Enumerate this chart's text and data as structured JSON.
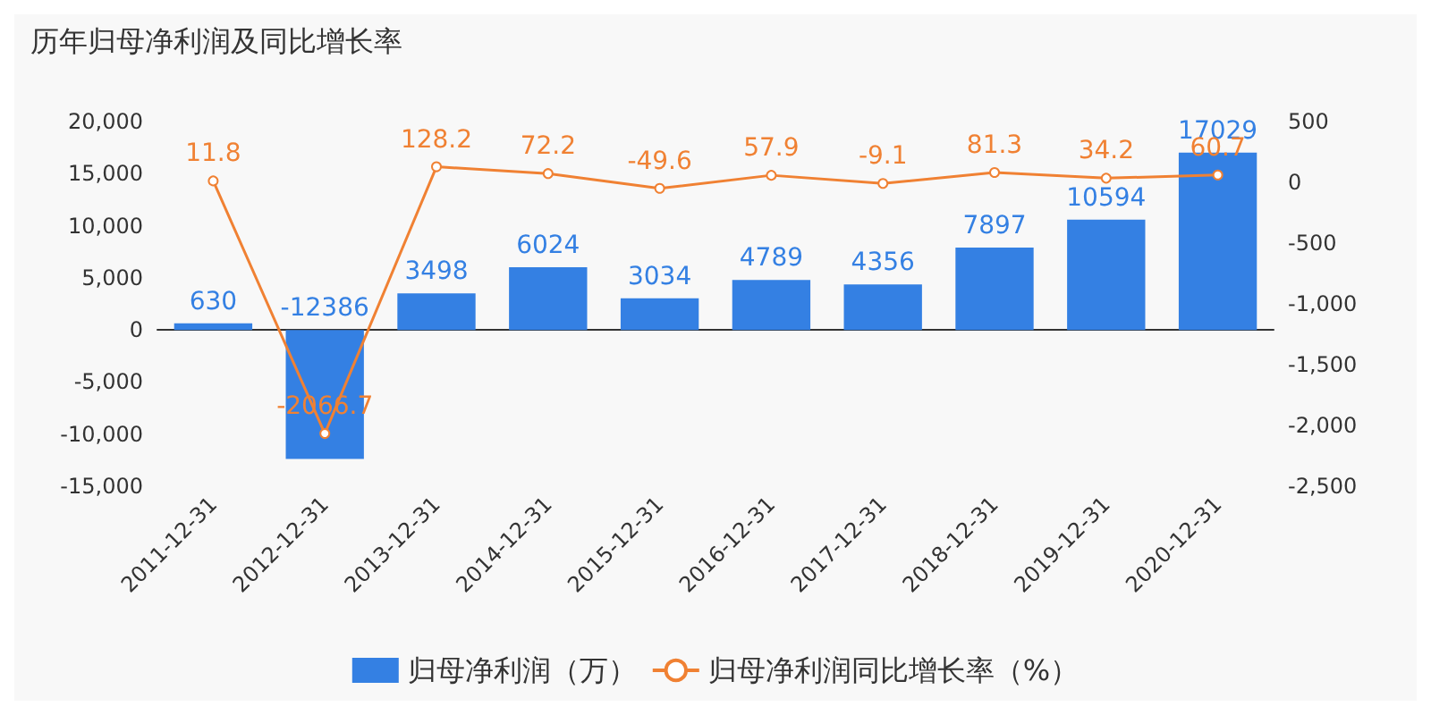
{
  "chart_data": {
    "type": "bar",
    "title": "历年归母净利润及同比增长率",
    "categories": [
      "2011-12-31",
      "2012-12-31",
      "2013-12-31",
      "2014-12-31",
      "2015-12-31",
      "2016-12-31",
      "2017-12-31",
      "2018-12-31",
      "2019-12-31",
      "2020-12-31"
    ],
    "series": [
      {
        "name": "归母净利润（万）",
        "color": "#3480e3",
        "values": [
          630,
          -12386,
          3498,
          6024,
          3034,
          4789,
          4356,
          7897,
          10594,
          17029
        ]
      },
      {
        "name": "归母净利润同比增长率（%）",
        "type": "line",
        "axis": "y2",
        "color": "#f08133",
        "marker": "circle",
        "values": [
          11.8,
          -2066.7,
          128.2,
          72.2,
          -49.6,
          57.9,
          -9.1,
          81.3,
          34.2,
          60.7
        ]
      }
    ],
    "data_labels": true,
    "legend": "bottom",
    "ylim": [
      -15000,
      20000
    ],
    "yticks": [
      {
        "value": -15000,
        "label": "-15,000"
      },
      {
        "value": -10000,
        "label": "-10,000"
      },
      {
        "value": -5000,
        "label": "-5,000"
      },
      0,
      {
        "value": 5000,
        "label": "5,000"
      },
      {
        "value": 10000,
        "label": "10,000"
      },
      {
        "value": 15000,
        "label": "15,000"
      },
      {
        "value": 20000,
        "label": "20,000"
      }
    ],
    "y2lim": [
      -2500,
      500
    ],
    "y2ticks": [
      {
        "value": -2500,
        "label": "-2,500"
      },
      {
        "value": -2000,
        "label": "-2,000"
      },
      {
        "value": -1500,
        "label": "-1,500"
      },
      {
        "value": -1000,
        "label": "-1,000"
      },
      -500,
      0,
      500
    ]
  }
}
